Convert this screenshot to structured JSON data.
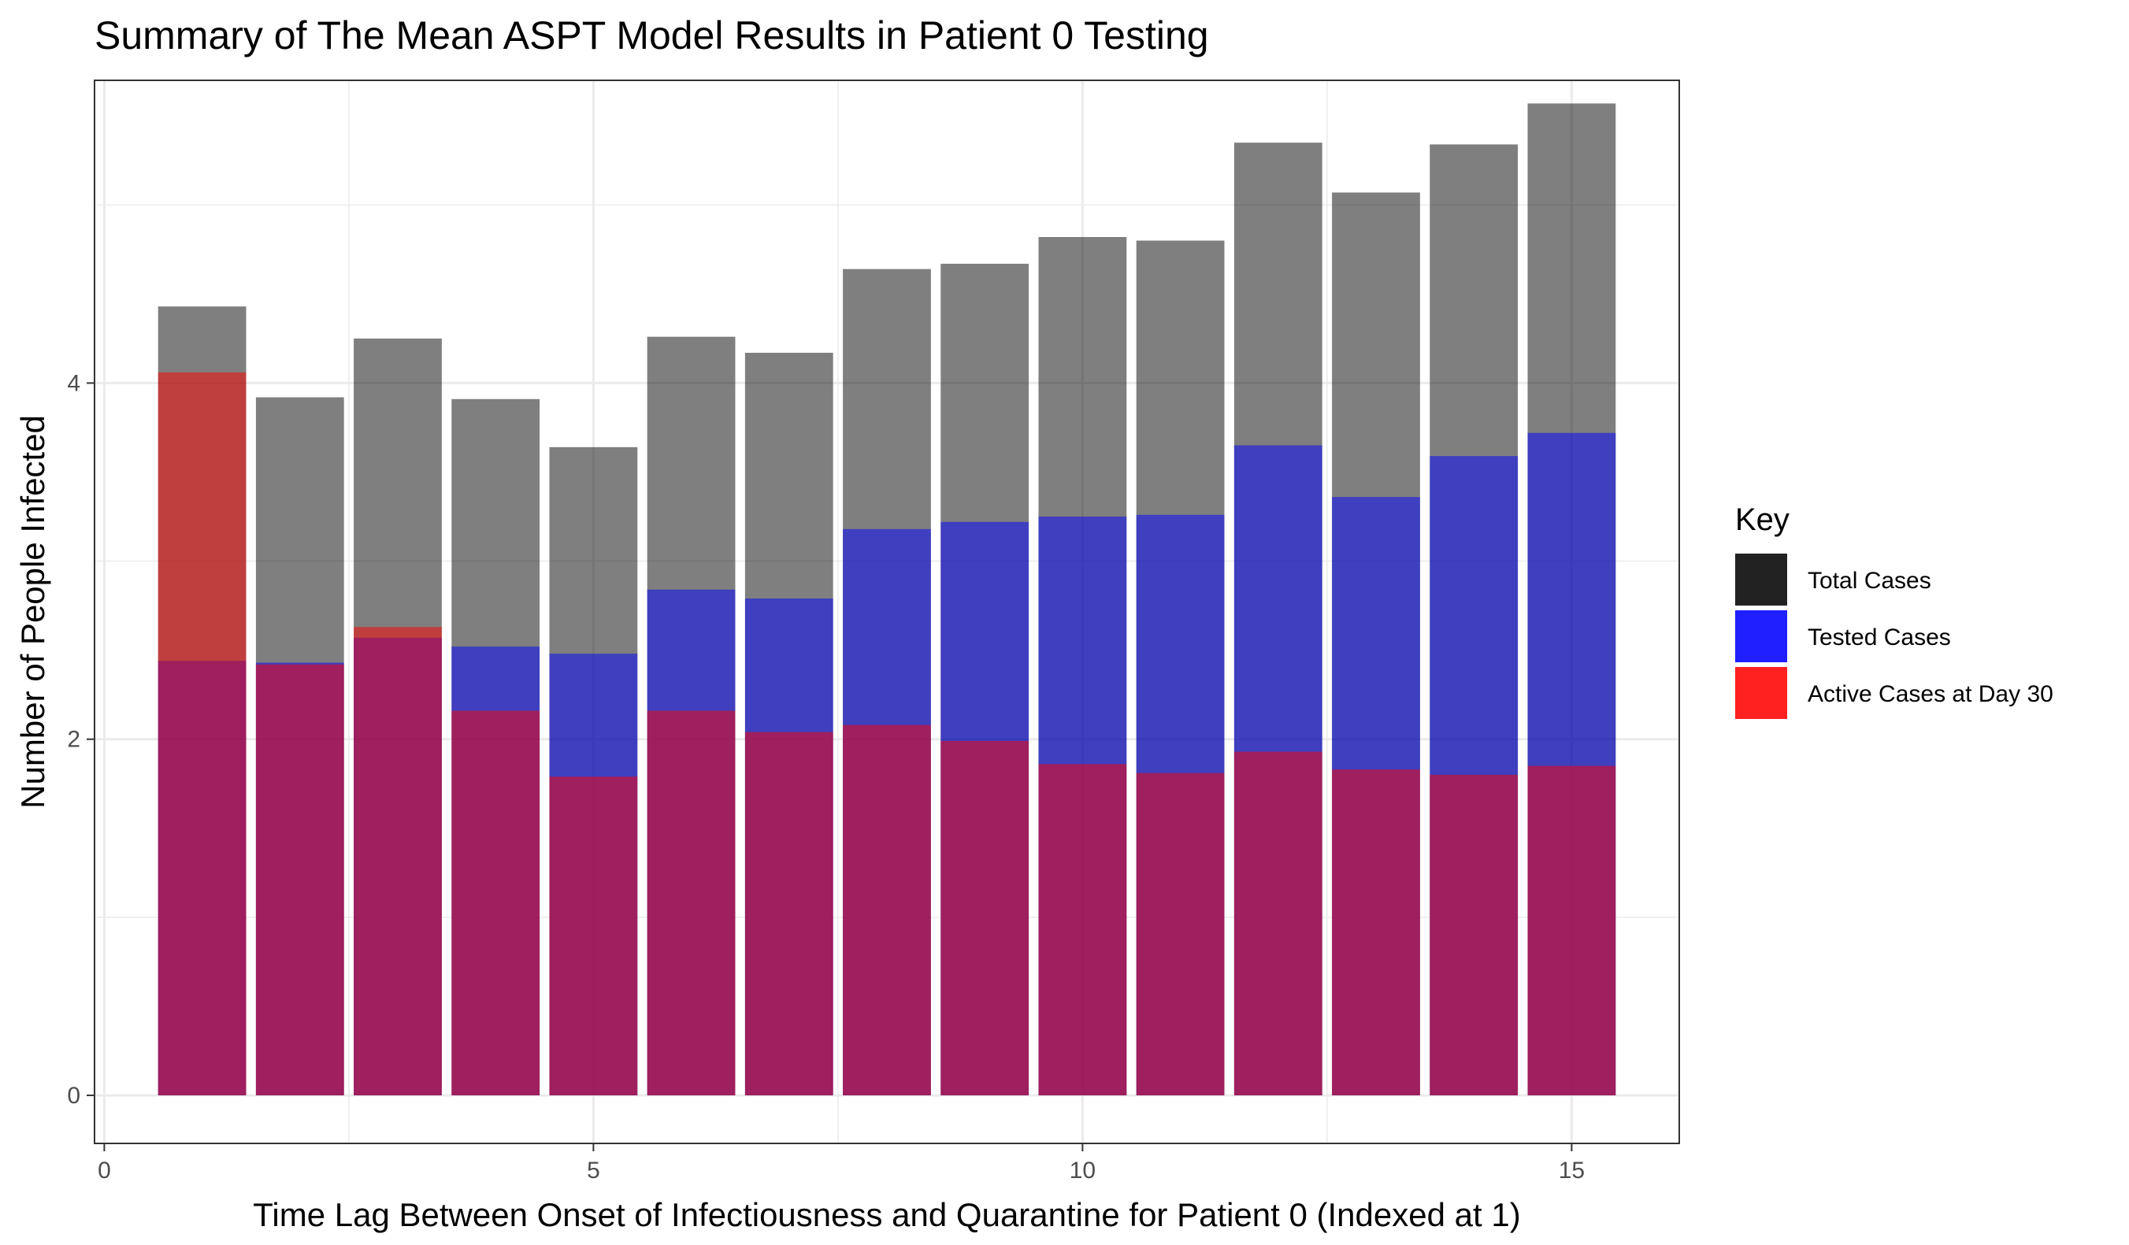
{
  "chart_data": {
    "type": "bar",
    "title": "Summary of The Mean ASPT Model Results in Patient 0 Testing",
    "xlabel": "Time Lag Between Onset of Infectiousness and Quarantine for Patient 0 (Indexed at 1)",
    "ylabel": "Number of People Infected",
    "xlim": [
      -0.1,
      16.1
    ],
    "ylim": [
      -0.27,
      5.7
    ],
    "x_ticks": [
      0,
      5,
      10,
      15
    ],
    "y_ticks": [
      0,
      2,
      4
    ],
    "x": [
      1,
      2,
      3,
      4,
      5,
      6,
      7,
      8,
      9,
      10,
      11,
      12,
      13,
      14,
      15
    ],
    "series": [
      {
        "name": "Total Cases",
        "color": "#000000",
        "opacity": 0.5,
        "values": [
          4.43,
          3.92,
          4.25,
          3.91,
          3.64,
          4.26,
          4.17,
          4.64,
          4.67,
          4.82,
          4.8,
          5.35,
          5.07,
          5.34,
          5.57
        ]
      },
      {
        "name": "Tested Cases",
        "color": "#0000ff",
        "opacity": 0.5,
        "values": [
          2.44,
          2.43,
          2.57,
          2.52,
          2.48,
          2.84,
          2.79,
          3.18,
          3.22,
          3.25,
          3.26,
          3.65,
          3.36,
          3.59,
          3.72
        ]
      },
      {
        "name": "Active Cases at Day 30",
        "color": "#ff0000",
        "opacity": 0.5,
        "values": [
          4.06,
          2.42,
          2.63,
          2.16,
          1.79,
          2.16,
          2.04,
          2.08,
          1.99,
          1.86,
          1.81,
          1.93,
          1.83,
          1.8,
          1.85
        ]
      }
    ],
    "legend": {
      "title": "Key",
      "position": "right",
      "entries": [
        {
          "label": "Total Cases",
          "swatch": "#222222"
        },
        {
          "label": "Tested Cases",
          "swatch": "#1f1fff"
        },
        {
          "label": "Active Cases at Day 30",
          "swatch": "#ff2020"
        }
      ]
    },
    "grid": true,
    "background": "#ffffff",
    "grid_color": "#ebebeb"
  }
}
